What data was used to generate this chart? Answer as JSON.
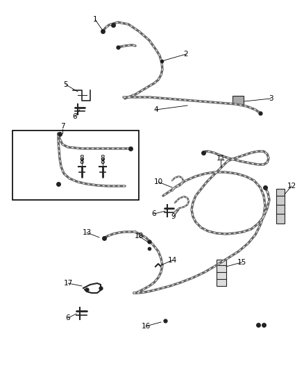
{
  "background_color": "#ffffff",
  "tube_color": "#666666",
  "dark_color": "#222222",
  "label_color": "#000000",
  "figsize": [
    4.38,
    5.33
  ],
  "dpi": 100
}
